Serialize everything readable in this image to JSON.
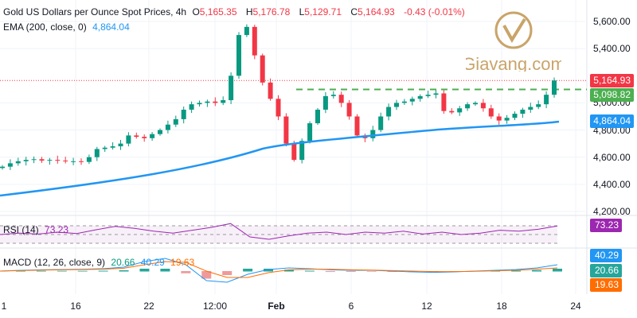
{
  "header": {
    "title": "Gold US Dollars per Ounce Spot Prices, 4h",
    "o_label": "O",
    "o": "5,165.35",
    "h_label": "H",
    "h": "5,176.78",
    "l_label": "L",
    "l": "5,129.71",
    "c_label": "C",
    "c": "5,164.93",
    "change": "-0.43 (-0.01%)",
    "ema_label": "EMA (200, close, 0)",
    "ema_value": "4,864.04",
    "rsi_label": "RSI (14)",
    "rsi_value": "73.23",
    "macd_label": "MACD (12, 26, close, 9)",
    "macd_hist": "20.66",
    "macd_line": "40.29",
    "macd_signal": "19.63"
  },
  "watermark": "Giavang.com",
  "price_tags": {
    "last": "5,164.93",
    "level": "5,098.82",
    "ema": "4,864.04",
    "rsi": "73.23",
    "macd": "40.29",
    "hist": "20.66",
    "signal": "19.63"
  },
  "colors": {
    "up": "#089981",
    "down": "#f23645",
    "ema": "#2196f3",
    "rsi": "#9c27b0",
    "level": "#4caf50",
    "macd": "#2196f3",
    "signal": "#ff6d00"
  },
  "chart_data": {
    "type": "candlestick",
    "y_ticks": [
      "5,600.00",
      "5,400.00",
      "5,000.00",
      "4,800.00",
      "4,600.00",
      "4,400.00",
      "4,200.00"
    ],
    "y_tick_values": [
      5600,
      5400,
      5000,
      4800,
      4600,
      4400,
      4200
    ],
    "ylim": [
      4180,
      5700
    ],
    "x_ticks": [
      "1",
      "16",
      "22",
      "12:00",
      "Feb",
      "6",
      "12",
      "18",
      "24"
    ],
    "closes": [
      4530,
      4555,
      4570,
      4580,
      4585,
      4575,
      4580,
      4575,
      4570,
      4570,
      4565,
      4600,
      4660,
      4670,
      4680,
      4700,
      4760,
      4750,
      4740,
      4770,
      4800,
      4840,
      4880,
      4950,
      4990,
      5000,
      5010,
      5000,
      5020,
      5200,
      5500,
      5560,
      5350,
      5150,
      5030,
      4900,
      4700,
      4580,
      4720,
      4850,
      4950,
      5050,
      5060,
      5000,
      4900,
      4760,
      4740,
      4800,
      4900,
      4970,
      5000,
      5010,
      5030,
      5050,
      5060,
      5070,
      4940,
      4930,
      4960,
      4990,
      5000,
      4960,
      4900,
      4870,
      4890,
      4920,
      4950,
      4970,
      4990,
      5060,
      5165
    ],
    "ema": {
      "start": 4320,
      "points": [
        [
          0,
          4320
        ],
        [
          20,
          4380
        ],
        [
          34,
          4560
        ],
        [
          40,
          4700
        ],
        [
          55,
          4790
        ],
        [
          70,
          4864
        ]
      ]
    },
    "horizontal_level": 5098.82,
    "rsi": [
      55,
      58,
      56,
      60,
      57,
      65,
      72,
      68,
      62,
      58,
      64,
      70,
      78,
      50,
      45,
      52,
      58,
      60,
      55,
      60,
      58,
      62,
      56,
      60,
      55,
      58,
      64,
      62,
      66,
      73
    ],
    "macd_line": [
      0,
      5,
      8,
      10,
      12,
      15,
      25,
      60,
      80,
      40,
      -60,
      -70,
      -20,
      10,
      20,
      15,
      8,
      5,
      5,
      0,
      -5,
      -8,
      -5,
      0,
      5,
      10,
      20,
      40
    ],
    "signal_line": [
      0,
      3,
      6,
      8,
      10,
      12,
      18,
      40,
      60,
      55,
      0,
      -40,
      -40,
      -10,
      8,
      12,
      12,
      8,
      6,
      3,
      0,
      -3,
      -3,
      -1,
      2,
      5,
      12,
      20
    ]
  }
}
